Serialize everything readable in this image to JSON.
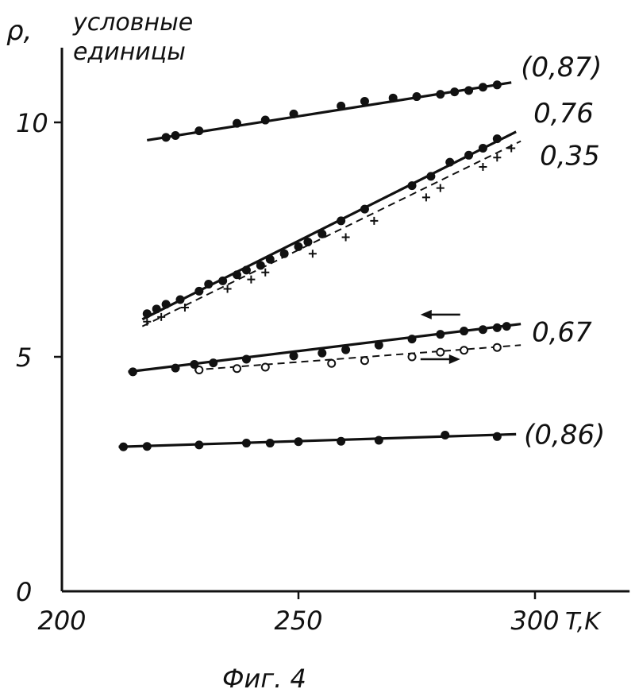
{
  "chart_data": {
    "type": "line",
    "ylabel_symbol": "ρ,",
    "ylabel_line1": "условные",
    "ylabel_line2": "единицы",
    "xlabel": "T,K",
    "caption": "Фиг. 4",
    "x_ticks": [
      "200",
      "250",
      "300"
    ],
    "x_tick_values": [
      200,
      250,
      300
    ],
    "y_ticks": [
      "0",
      "5",
      "10"
    ],
    "y_tick_values": [
      0,
      5,
      10
    ],
    "xlim": [
      200,
      320
    ],
    "ylim": [
      0,
      11.5
    ],
    "grid": false,
    "series": [
      {
        "name": "(0,87)",
        "style": "solid",
        "marker": "filled",
        "line": [
          [
            218,
            9.62
          ],
          [
            295,
            10.85
          ]
        ],
        "x": [
          222,
          224,
          229,
          237,
          243,
          249,
          259,
          264,
          270,
          275,
          280,
          283,
          286,
          289,
          292
        ],
        "y": [
          9.68,
          9.72,
          9.82,
          9.98,
          10.05,
          10.18,
          10.35,
          10.45,
          10.52,
          10.55,
          10.6,
          10.65,
          10.68,
          10.75,
          10.8
        ]
      },
      {
        "name": "0,76",
        "style": "solid",
        "marker": "filled",
        "line": [
          [
            217,
            5.8
          ],
          [
            296,
            9.8
          ]
        ],
        "x": [
          218,
          220,
          222,
          225,
          229,
          231,
          234,
          237,
          239,
          242,
          244,
          247,
          250,
          252,
          255,
          259,
          264,
          274,
          278,
          282,
          286,
          289,
          292
        ],
        "y": [
          5.92,
          6.02,
          6.12,
          6.22,
          6.4,
          6.55,
          6.62,
          6.75,
          6.85,
          6.95,
          7.08,
          7.2,
          7.35,
          7.45,
          7.62,
          7.9,
          8.15,
          8.65,
          8.85,
          9.15,
          9.3,
          9.45,
          9.65
        ]
      },
      {
        "name": "0,35",
        "style": "dashed",
        "marker": "plus",
        "line": [
          [
            217,
            5.65
          ],
          [
            297,
            9.6
          ]
        ],
        "x": [
          218,
          221,
          226,
          235,
          240,
          243,
          253,
          260,
          266,
          277,
          280,
          289,
          292,
          295
        ],
        "y": [
          5.75,
          5.85,
          6.05,
          6.45,
          6.65,
          6.8,
          7.2,
          7.55,
          7.9,
          8.4,
          8.6,
          9.05,
          9.25,
          9.45
        ]
      },
      {
        "name": "0,67",
        "style": "solid",
        "marker": "filled",
        "line": [
          [
            214,
            4.68
          ],
          [
            297,
            5.7
          ]
        ],
        "x": [
          215,
          224,
          228,
          232,
          239,
          249,
          255,
          260,
          267,
          274,
          280,
          285,
          289,
          292,
          294
        ],
        "y": [
          4.68,
          4.76,
          4.84,
          4.87,
          4.95,
          5.02,
          5.08,
          5.15,
          5.25,
          5.38,
          5.48,
          5.55,
          5.58,
          5.62,
          5.65
        ]
      },
      {
        "name": "",
        "style": "dashed",
        "marker": "open",
        "line": [
          [
            228,
            4.72
          ],
          [
            297,
            5.25
          ]
        ],
        "x": [
          229,
          237,
          243,
          257,
          264,
          274,
          280,
          285,
          292
        ],
        "y": [
          4.72,
          4.75,
          4.78,
          4.86,
          4.92,
          5.0,
          5.1,
          5.14,
          5.2
        ]
      },
      {
        "name": "(0,86)",
        "style": "solid",
        "marker": "filled",
        "line": [
          [
            212,
            3.08
          ],
          [
            296,
            3.35
          ]
        ],
        "x": [
          213,
          218,
          229,
          239,
          244,
          250,
          259,
          267,
          281,
          292
        ],
        "y": [
          3.08,
          3.09,
          3.12,
          3.16,
          3.16,
          3.19,
          3.2,
          3.22,
          3.33,
          3.3
        ]
      }
    ],
    "arrows": [
      {
        "label": "",
        "direction": "left",
        "at": [
          280,
          5.9
        ]
      },
      {
        "label": "",
        "direction": "right",
        "at": [
          280,
          4.95
        ]
      }
    ]
  }
}
